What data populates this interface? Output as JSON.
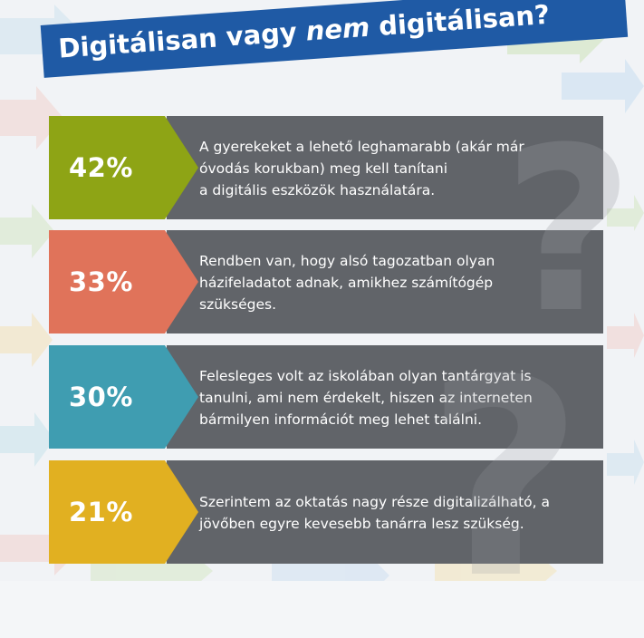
{
  "title": {
    "prefix": "Digitálisan vagy ",
    "emphasis": "nem",
    "suffix": " digitálisan?"
  },
  "items": [
    {
      "percent": "42%",
      "text": "A gyerekeket a lehető leghamarabb (akár már\nóvodás korukban) meg kell tanítani\na digitális eszközök használatára.",
      "color": "#8ea415"
    },
    {
      "percent": "33%",
      "text": "Rendben van, hogy alsó tagozatban olyan\nházifeladatot adnak, amikhez számítógép\nszükséges.",
      "color": "#e0735a"
    },
    {
      "percent": "30%",
      "text": "Felesleges volt az iskolában olyan tantárgyat is\ntanulni, ami nem érdekelt, hiszen az interneten\nbármilyen információt meg lehet találni.",
      "color": "#3f9db1"
    },
    {
      "percent": "21%",
      "text": "Szerintem az oktatás nagy része digitalizálható, a\njövőben egyre kevesebb tanárra lesz szükség.",
      "color": "#e1b021"
    }
  ],
  "colors": {
    "banner": "#1f5aa5",
    "panel": "#616469"
  }
}
